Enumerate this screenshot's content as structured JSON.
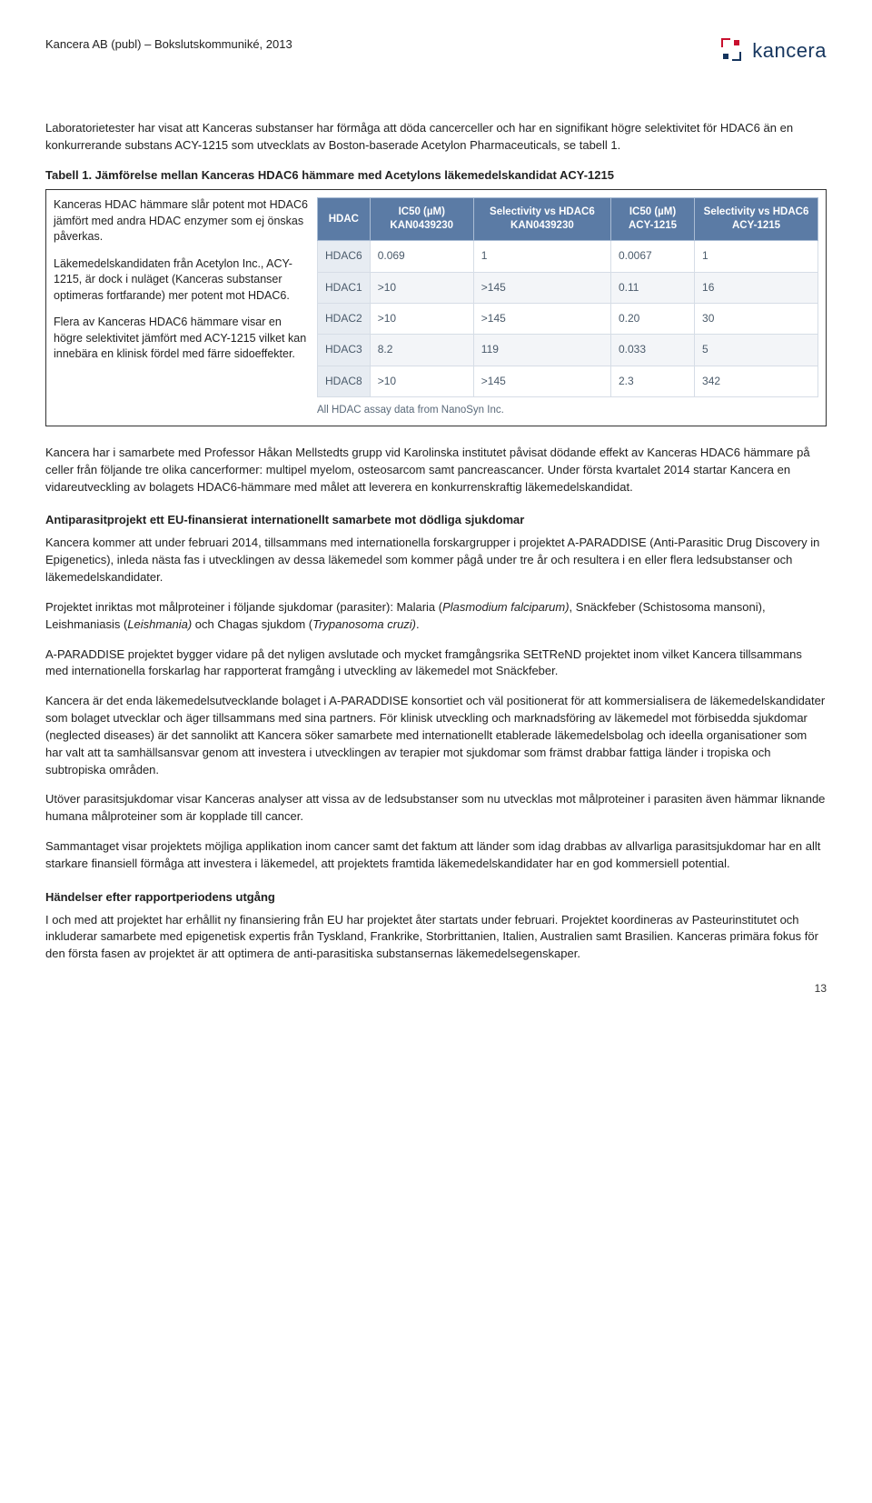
{
  "header": {
    "text": "Kancera AB (publ) – Bokslutskommuniké, 2013",
    "logo_text": "kancera"
  },
  "intro_p1": "Laboratorietester har visat att Kanceras substanser har förmåga att döda cancerceller och har en signifikant högre selektivitet för HDAC6 än en konkurrerande substans ACY-1215 som utvecklats av Boston-baserade Acetylon Pharmaceuticals, se tabell 1.",
  "table_title_label": "Tabell 1.",
  "table_title_rest": " Jämförelse mellan Kanceras HDAC6 hämmare med Acetylons läkemedelskandidat ACY-1215",
  "left_col": {
    "p1": "Kanceras HDAC hämmare slår potent mot HDAC6 jämfört med andra HDAC enzymer som ej önskas påverkas.",
    "p2": "Läkemedelskandidaten från Acetylon Inc., ACY-1215, är dock i nuläget (Kanceras substanser optimeras fortfarande) mer potent mot HDAC6.",
    "p3": "Flera av Kanceras HDAC6 hämmare visar en högre selektivitet jämfört med ACY-1215 vilket kan innebära en klinisk fördel med färre sidoeffekter."
  },
  "hdac_table": {
    "headers": [
      "HDAC",
      "IC50 (µM)\nKAN0439230",
      "Selectivity vs\nHDAC6\nKAN0439230",
      "IC50 (µM)\nACY-1215",
      "Selectivity vs\nHDAC6\nACY-1215"
    ],
    "rows": [
      [
        "HDAC6",
        "0.069",
        "1",
        "0.0067",
        "1"
      ],
      [
        "HDAC1",
        ">10",
        ">145",
        "0.11",
        "16"
      ],
      [
        "HDAC2",
        ">10",
        ">145",
        "0.20",
        "30"
      ],
      [
        "HDAC3",
        "8.2",
        "119",
        "0.033",
        "5"
      ],
      [
        "HDAC8",
        ">10",
        ">145",
        "2.3",
        "342"
      ]
    ],
    "caption": "All HDAC assay data from NanoSyn Inc.",
    "header_bg": "#5b7ba5",
    "header_color": "#ffffff",
    "row_alt_bg": "#f3f5f8",
    "first_col_bg": "#e7ecf2"
  },
  "body": {
    "p1": "Kancera har i samarbete med Professor Håkan Mellstedts grupp vid Karolinska institutet påvisat dödande effekt av Kanceras HDAC6 hämmare på celler från följande tre olika cancerformer: multipel myelom, osteosarcom samt pancreascancer. Under första kvartalet 2014 startar Kancera en vidareutveckling av bolagets HDAC6-hämmare med målet att leverera en konkurrenskraftig läkemedelskandidat.",
    "h1": "Antiparasitprojekt ett EU-finansierat internationellt samarbete mot dödliga sjukdomar",
    "p2": "Kancera kommer att under februari 2014, tillsammans med internationella forskargrupper i projektet A-PARADDISE (Anti-Parasitic Drug Discovery in Epigenetics), inleda nästa fas i utvecklingen av dessa läkemedel som kommer pågå under tre år och resultera i en eller flera ledsubstanser och läkemedelskandidater.",
    "p3_a": "Projektet inriktas mot målproteiner i följande sjukdomar (parasiter): Malaria (",
    "p3_b": "Plasmodium falciparum)",
    "p3_c": ", Snäckfeber (Schistosoma mansoni), Leishmaniasis (",
    "p3_d": "Leishmania)",
    "p3_e": " och Chagas sjukdom (",
    "p3_f": "Trypanosoma cruzi)",
    "p3_g": ".",
    "p4": "A-PARADDISE projektet bygger vidare på det nyligen avslutade och mycket framgångsrika SEtTReND projektet inom vilket Kancera tillsammans med internationella forskarlag har rapporterat framgång i utveckling av läkemedel mot Snäckfeber.",
    "p5": "Kancera är det enda läkemedelsutvecklande bolaget i A-PARADDISE konsortiet och väl positionerat för att kommersialisera de läkemedelskandidater som bolaget utvecklar och äger tillsammans med sina partners. För klinisk utveckling och marknadsföring av läkemedel mot förbisedda sjukdomar (neglected diseases) är det sannolikt att Kancera söker samarbete med internationellt etablerade läkemedelsbolag och ideella organisationer som har valt att ta samhällsansvar genom att investera i utvecklingen av terapier mot sjukdomar som främst drabbar fattiga länder i tropiska och subtropiska områden.",
    "p6": "Utöver parasitsjukdomar visar Kanceras analyser att vissa av de ledsubstanser som nu utvecklas mot målproteiner i parasiten även hämmar liknande humana målproteiner som är kopplade till cancer.",
    "p7": "Sammantaget visar projektets möjliga applikation inom cancer samt det faktum att länder som idag drabbas av allvarliga parasitsjukdomar har en allt starkare finansiell förmåga att investera i läkemedel, att projektets framtida läkemedelskandidater har en god kommersiell potential.",
    "h2": "Händelser efter rapportperiodens utgång",
    "p8": "I och med att projektet har erhållit ny finansiering från EU har projektet åter startats under februari. Projektet koordineras av Pasteurinstitutet och inkluderar samarbete med epigenetisk expertis från Tyskland, Frankrike, Storbrittanien, Italien, Australien samt Brasilien. Kanceras primära fokus för den första fasen av projektet är att optimera de anti-parasitiska substansernas läkemedelsegenskaper."
  },
  "page_number": "13"
}
